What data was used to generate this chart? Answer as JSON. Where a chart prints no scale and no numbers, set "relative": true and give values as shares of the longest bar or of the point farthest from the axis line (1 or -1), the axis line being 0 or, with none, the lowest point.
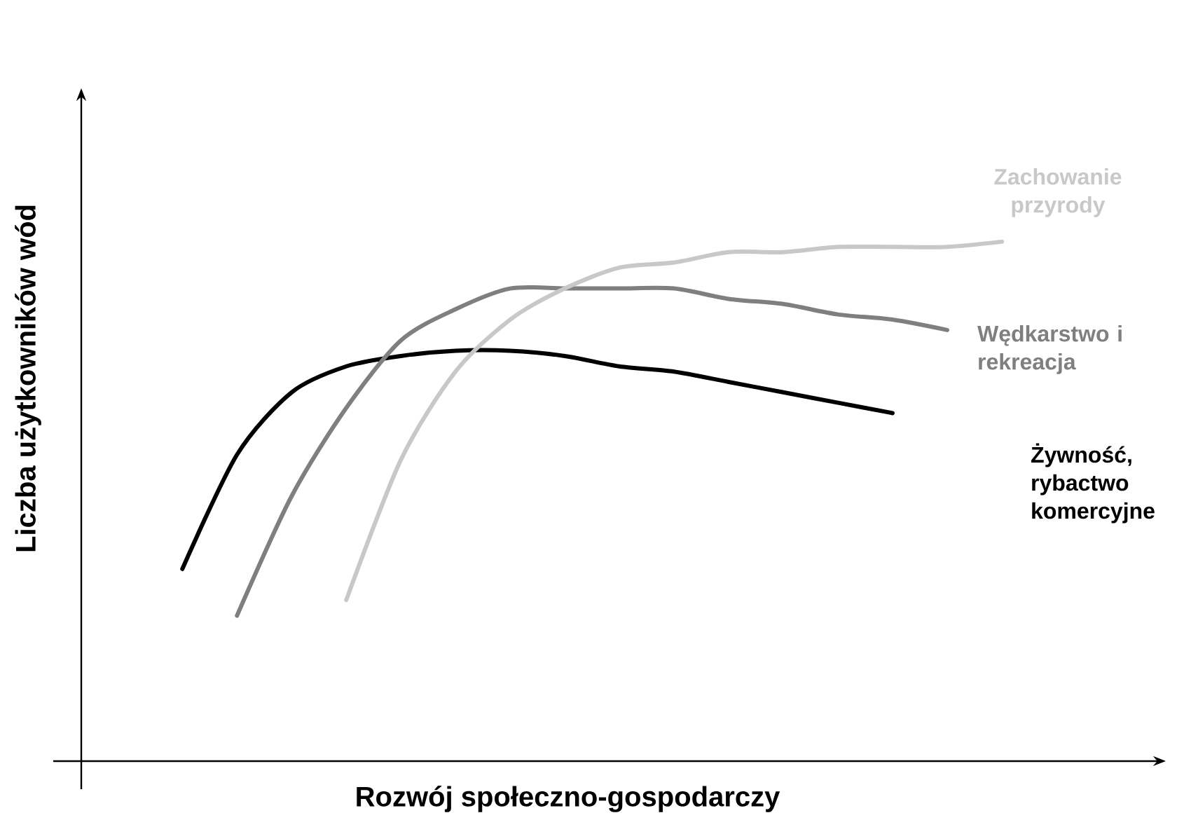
{
  "chart_data": {
    "type": "line",
    "relative": true,
    "xlabel": "Rozwój społeczno-gospodarczy",
    "ylabel": "Liczba użytkowników wód",
    "categories": [
      null,
      null,
      null,
      null,
      null,
      null,
      null,
      null,
      null,
      null,
      null,
      null,
      null,
      null,
      null,
      null
    ],
    "series": [
      {
        "name": "Żywność, rybactwo komercyjne",
        "color": "#000000",
        "values": [
          0.37,
          0.59,
          0.71,
          0.76,
          0.78,
          0.79,
          0.79,
          0.78,
          0.76,
          0.75,
          0.73,
          0.71,
          0.69,
          0.67,
          null,
          null
        ]
      },
      {
        "name": "Wędkarstwo i rekreacja",
        "color": "#7f7f7f",
        "values": [
          null,
          0.28,
          0.51,
          0.68,
          0.81,
          0.87,
          0.91,
          0.91,
          0.91,
          0.91,
          0.89,
          0.88,
          0.86,
          0.85,
          0.83,
          null
        ]
      },
      {
        "name": "Zachowanie przyrody",
        "color": "#c8c8c8",
        "values": [
          null,
          null,
          null,
          0.31,
          0.58,
          0.75,
          0.85,
          0.91,
          0.95,
          0.96,
          0.98,
          0.98,
          0.99,
          0.99,
          0.99,
          1.0
        ]
      }
    ]
  }
}
